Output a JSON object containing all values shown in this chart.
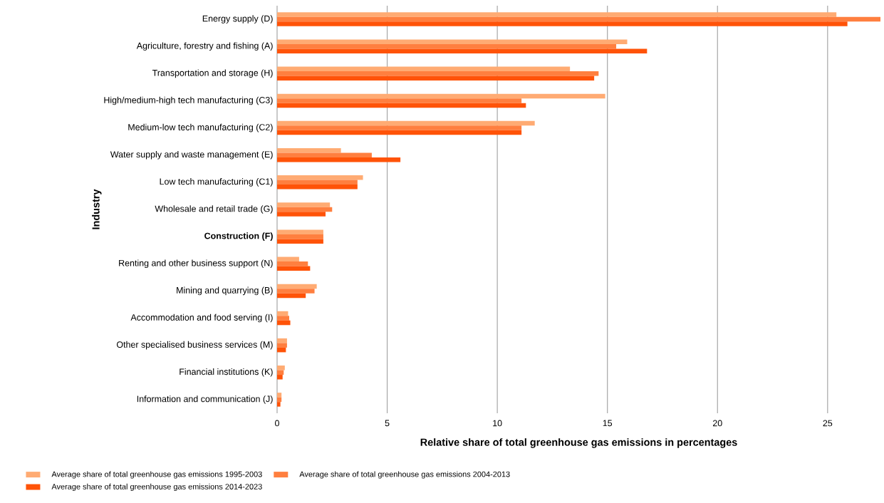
{
  "chart_data": {
    "type": "bar",
    "orientation": "horizontal",
    "xlabel": "Relative share of total greenhouse gas emissions in percentages",
    "ylabel": "Industry",
    "categories": [
      "Energy supply (D)",
      "Agriculture, forestry and fishing (A)",
      "Transportation and storage (H)",
      "High/medium-high tech manufacturing (C3)",
      "Medium-low tech manufacturing (C2)",
      "Water supply and waste management (E)",
      "Low tech manufacturing (C1)",
      "Wholesale and retail trade (G)",
      "**Construction (F)**",
      "Renting and other business support (N)",
      "Mining and quarrying (B)",
      "Accommodation and food serving (I)",
      "Other specialised business services (M)",
      "Financial institutions (K)",
      "Information and communication (J)"
    ],
    "series": [
      {
        "name": "Average share of total greenhouse gas emissions 1995-2003",
        "color": "#ffab73",
        "values": [
          25.4,
          15.9,
          13.3,
          14.9,
          11.7,
          2.9,
          3.9,
          2.4,
          2.1,
          1.0,
          1.8,
          0.5,
          0.45,
          0.35,
          0.2
        ]
      },
      {
        "name": "Average share of total greenhouse gas emissions 2004-2013",
        "color": "#ff7f3f",
        "values": [
          27.4,
          15.4,
          14.6,
          11.1,
          11.1,
          4.3,
          3.65,
          2.5,
          2.1,
          1.4,
          1.7,
          0.55,
          0.45,
          0.3,
          0.2
        ]
      },
      {
        "name": "Average share of total greenhouse gas emissions 2014-2023",
        "color": "#ff5308",
        "values": [
          25.9,
          16.8,
          14.4,
          11.3,
          11.1,
          5.6,
          3.65,
          2.2,
          2.1,
          1.5,
          1.3,
          0.6,
          0.4,
          0.25,
          0.15
        ]
      }
    ],
    "xlim": [
      0,
      27.4
    ],
    "xticks": [
      0,
      5,
      10,
      15,
      20,
      25
    ],
    "grid": "x",
    "legend": "bottom"
  }
}
